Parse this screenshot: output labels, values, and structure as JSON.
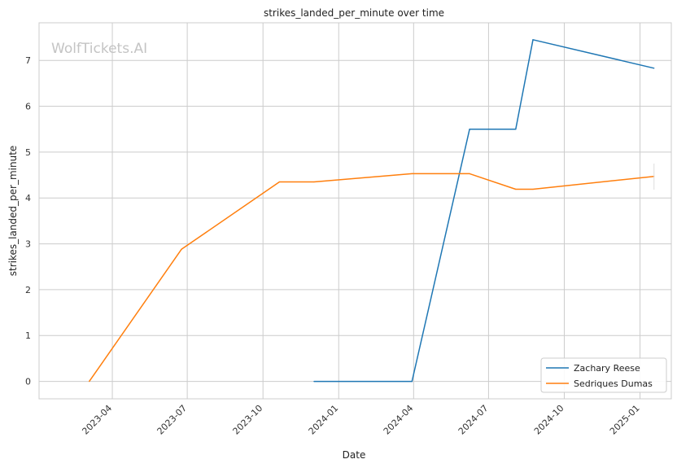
{
  "chart_data": {
    "type": "line",
    "title": "strikes_landed_per_minute over time",
    "xlabel": "Date",
    "ylabel": "strikes_landed_per_minute",
    "watermark": "WolfTickets.AI",
    "xlim": [
      "2023-01-02",
      "2025-02-08"
    ],
    "ylim": [
      -0.38,
      7.82
    ],
    "x_ticks": [
      "2023-04",
      "2023-07",
      "2023-10",
      "2024-01",
      "2024-04",
      "2024-07",
      "2024-10",
      "2025-01"
    ],
    "y_ticks": [
      0,
      1,
      2,
      3,
      4,
      5,
      6,
      7
    ],
    "grid": true,
    "legend_position": "bottom-right",
    "series": [
      {
        "name": "Zachary Reese",
        "color": "#1f77b4",
        "x": [
          "2023-12-02",
          "2024-03-30",
          "2024-06-08",
          "2024-08-03",
          "2024-08-24",
          "2025-01-18"
        ],
        "y": [
          0.0,
          0.0,
          5.5,
          5.5,
          7.45,
          6.83
        ]
      },
      {
        "name": "Sedriques Dumas",
        "color": "#ff7f0e",
        "x": [
          "2023-03-04",
          "2023-06-24",
          "2023-10-21",
          "2023-12-02",
          "2024-03-30",
          "2024-06-08",
          "2024-08-03",
          "2024-08-24",
          "2025-01-18"
        ],
        "y": [
          0.0,
          2.88,
          4.35,
          4.35,
          4.53,
          4.53,
          4.19,
          4.19,
          4.47
        ]
      }
    ]
  }
}
